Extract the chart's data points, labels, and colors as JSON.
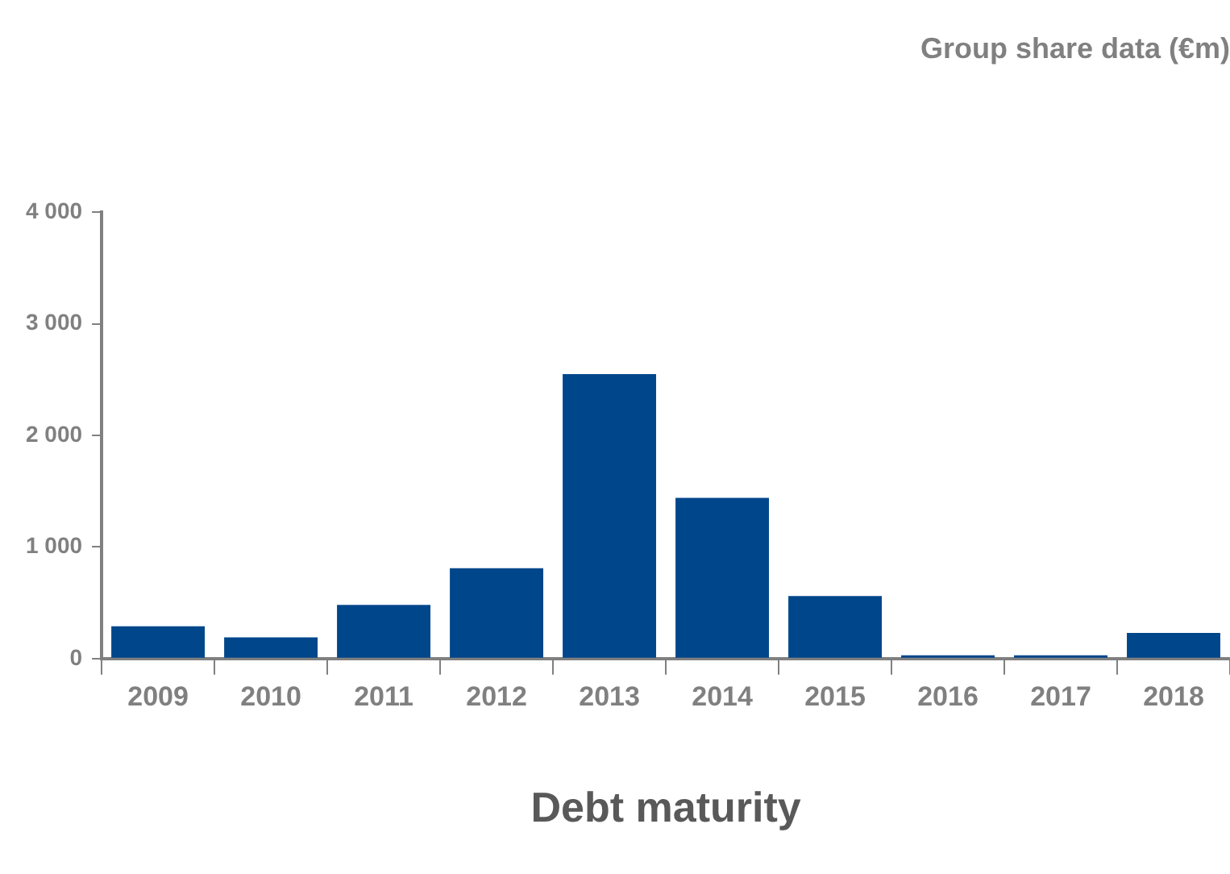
{
  "chart_data": {
    "type": "bar",
    "title": "Group share data (€m)",
    "xlabel": "Debt maturity",
    "categories": [
      "2009",
      "2010",
      "2011",
      "2012",
      "2013",
      "2014",
      "2015",
      "2016",
      "2017",
      "2018"
    ],
    "values": [
      290,
      190,
      480,
      810,
      2550,
      1440,
      560,
      30,
      30,
      230
    ],
    "color": "#00468b",
    "ylim": [
      0,
      4000
    ],
    "yticks": [
      {
        "value": 0,
        "label": "0"
      },
      {
        "value": 1000,
        "label": "1 000"
      },
      {
        "value": 2000,
        "label": "2 000"
      },
      {
        "value": 3000,
        "label": "3 000"
      },
      {
        "value": 4000,
        "label": "4 000"
      }
    ],
    "grid": false,
    "legend": false
  }
}
